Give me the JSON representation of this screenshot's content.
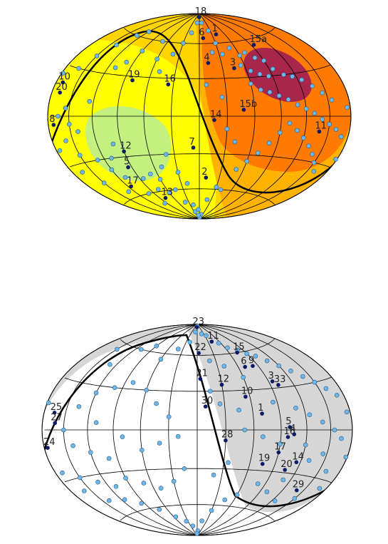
{
  "chart_data": [
    {
      "type": "scatter",
      "projection": "hammer-aitoff",
      "coordinates": "galactic",
      "grid": true,
      "background": "filled dipole contours",
      "contour_colors": [
        "#c3f07f",
        "#ffff00",
        "#ffd500",
        "#ffb300",
        "#ff7a00",
        "#a8254c"
      ],
      "boundary_curve": true,
      "labeled_points": [
        {
          "label": "18",
          "l": 2,
          "b": 86
        },
        {
          "label": "1",
          "l": -40,
          "b": 68
        },
        {
          "label": "15a",
          "l": -95,
          "b": 55
        },
        {
          "label": "6",
          "l": -8,
          "b": 65
        },
        {
          "label": "4",
          "l": -12,
          "b": 43
        },
        {
          "label": "3",
          "l": -45,
          "b": 38
        },
        {
          "label": "10",
          "l": 170,
          "b": 20
        },
        {
          "label": "20",
          "l": 168,
          "b": 14
        },
        {
          "label": "19",
          "l": 80,
          "b": 27
        },
        {
          "label": "16",
          "l": 36,
          "b": 25
        },
        {
          "label": "15b",
          "l": -48,
          "b": 5
        },
        {
          "label": "8",
          "l": 172,
          "b": -5
        },
        {
          "label": "14",
          "l": -16,
          "b": -3
        },
        {
          "label": "11",
          "l": -138,
          "b": -10
        },
        {
          "label": "12",
          "l": 90,
          "b": -26
        },
        {
          "label": "7",
          "l": 7,
          "b": -25
        },
        {
          "label": "5",
          "l": 95,
          "b": -38
        },
        {
          "label": "2",
          "l": -10,
          "b": -50
        },
        {
          "label": "17",
          "l": 115,
          "b": -52
        },
        {
          "label": "13",
          "l": 78,
          "b": -66
        }
      ],
      "unlabeled_points": [
        {
          "l": -25,
          "b": 72
        },
        {
          "l": -30,
          "b": 60
        },
        {
          "l": -20,
          "b": 52
        },
        {
          "l": -35,
          "b": 50
        },
        {
          "l": -50,
          "b": 55
        },
        {
          "l": -60,
          "b": 48
        },
        {
          "l": -70,
          "b": 50
        },
        {
          "l": -80,
          "b": 45
        },
        {
          "l": -90,
          "b": 42
        },
        {
          "l": -55,
          "b": 40
        },
        {
          "l": -65,
          "b": 35
        },
        {
          "l": -75,
          "b": 32
        },
        {
          "l": -85,
          "b": 30
        },
        {
          "l": -95,
          "b": 35
        },
        {
          "l": -105,
          "b": 30
        },
        {
          "l": -115,
          "b": 28
        },
        {
          "l": -125,
          "b": 25
        },
        {
          "l": -135,
          "b": 20
        },
        {
          "l": -145,
          "b": 15
        },
        {
          "l": -155,
          "b": 10
        },
        {
          "l": -60,
          "b": 25
        },
        {
          "l": -70,
          "b": 20
        },
        {
          "l": -80,
          "b": 18
        },
        {
          "l": -90,
          "b": 15
        },
        {
          "l": -100,
          "b": 12
        },
        {
          "l": -110,
          "b": 8
        },
        {
          "l": -120,
          "b": 5
        },
        {
          "l": -130,
          "b": 2
        },
        {
          "l": -140,
          "b": -2
        },
        {
          "l": -150,
          "b": -5
        },
        {
          "l": -160,
          "b": -8
        },
        {
          "l": -170,
          "b": -12
        },
        {
          "l": -100,
          "b": -5
        },
        {
          "l": -110,
          "b": -10
        },
        {
          "l": -120,
          "b": -15
        },
        {
          "l": -90,
          "b": -12
        },
        {
          "l": -80,
          "b": -20
        },
        {
          "l": -70,
          "b": -28
        },
        {
          "l": -60,
          "b": -35
        },
        {
          "l": -50,
          "b": -42
        },
        {
          "l": -130,
          "b": -20
        },
        {
          "l": -140,
          "b": -25
        },
        {
          "l": -150,
          "b": -30
        },
        {
          "l": -160,
          "b": -35
        },
        {
          "l": -40,
          "b": -60
        },
        {
          "l": -20,
          "b": -70
        },
        {
          "l": -30,
          "b": -58
        },
        {
          "l": 5,
          "b": -80
        },
        {
          "l": 20,
          "b": -75
        },
        {
          "l": 40,
          "b": -72
        },
        {
          "l": 60,
          "b": -62
        },
        {
          "l": 75,
          "b": -58
        },
        {
          "l": 100,
          "b": -60
        },
        {
          "l": 130,
          "b": -55
        },
        {
          "l": 150,
          "b": -45
        },
        {
          "l": 165,
          "b": -35
        },
        {
          "l": 175,
          "b": -20
        },
        {
          "l": 160,
          "b": -15
        },
        {
          "l": 150,
          "b": -25
        },
        {
          "l": 140,
          "b": -10
        },
        {
          "l": 130,
          "b": -30
        },
        {
          "l": 120,
          "b": -38
        },
        {
          "l": 110,
          "b": -30
        },
        {
          "l": 100,
          "b": -20
        },
        {
          "l": 70,
          "b": -45
        },
        {
          "l": 60,
          "b": -50
        },
        {
          "l": 50,
          "b": -40
        },
        {
          "l": 40,
          "b": -30
        },
        {
          "l": 30,
          "b": -45
        },
        {
          "l": 20,
          "b": -55
        },
        {
          "l": 45,
          "b": -60
        },
        {
          "l": 85,
          "b": -48
        },
        {
          "l": 95,
          "b": -70
        },
        {
          "l": 110,
          "b": -45
        },
        {
          "l": 160,
          "b": 30
        },
        {
          "l": 150,
          "b": 40
        },
        {
          "l": 140,
          "b": 50
        },
        {
          "l": 130,
          "b": 60
        },
        {
          "l": 120,
          "b": 65
        },
        {
          "l": 110,
          "b": 35
        },
        {
          "l": 100,
          "b": 40
        },
        {
          "l": 90,
          "b": 50
        },
        {
          "l": 70,
          "b": 60
        },
        {
          "l": 60,
          "b": 45
        },
        {
          "l": 50,
          "b": 35
        },
        {
          "l": 40,
          "b": 50
        },
        {
          "l": 30,
          "b": 60
        },
        {
          "l": 20,
          "b": 70
        },
        {
          "l": 10,
          "b": 80
        },
        {
          "l": 155,
          "b": 5
        },
        {
          "l": 165,
          "b": 0
        },
        {
          "l": 150,
          "b": -5
        },
        {
          "l": 125,
          "b": 10
        },
        {
          "l": -10,
          "b": 80
        },
        {
          "l": -15,
          "b": -85
        },
        {
          "l": -5,
          "b": -88
        },
        {
          "l": 10,
          "b": -86
        },
        {
          "l": 25,
          "b": -82
        },
        {
          "l": -8,
          "b": 25
        },
        {
          "l": -25,
          "b": 15
        },
        {
          "l": -30,
          "b": -10
        },
        {
          "l": -40,
          "b": -20
        },
        {
          "l": -175,
          "b": 5
        },
        {
          "l": -178,
          "b": -25
        },
        {
          "l": 178,
          "b": 25
        }
      ]
    },
    {
      "type": "scatter",
      "projection": "hammer-aitoff",
      "coordinates": "galactic",
      "grid": true,
      "background": "grey half-sky shading",
      "shade_color": "#d6d6d6",
      "boundary_curve": true,
      "labeled_points": [
        {
          "label": "23",
          "l": 5,
          "b": 87
        },
        {
          "label": "11",
          "l": -40,
          "b": 72
        },
        {
          "label": "15",
          "l": -75,
          "b": 60
        },
        {
          "label": "22",
          "l": -3,
          "b": 62
        },
        {
          "label": "6",
          "l": -70,
          "b": 48
        },
        {
          "label": "9",
          "l": -82,
          "b": 48
        },
        {
          "label": "21",
          "l": -4,
          "b": 40
        },
        {
          "label": "12",
          "l": -30,
          "b": 35
        },
        {
          "label": "3",
          "l": -95,
          "b": 35
        },
        {
          "label": "33",
          "l": -100,
          "b": 32
        },
        {
          "label": "10",
          "l": -55,
          "b": 25
        },
        {
          "label": "30",
          "l": -9,
          "b": 18
        },
        {
          "label": "1",
          "l": -70,
          "b": 12
        },
        {
          "label": "25",
          "l": 165,
          "b": 10
        },
        {
          "label": "27",
          "l": 162,
          "b": 4
        },
        {
          "label": "5",
          "l": -100,
          "b": 2
        },
        {
          "label": "16",
          "l": -98,
          "b": -5
        },
        {
          "label": "4",
          "l": -105,
          "b": -3
        },
        {
          "label": "28",
          "l": -30,
          "b": -8
        },
        {
          "label": "17",
          "l": -90,
          "b": -16
        },
        {
          "label": "24",
          "l": 175,
          "b": -10
        },
        {
          "label": "19",
          "l": -75,
          "b": -25
        },
        {
          "label": "14",
          "l": -115,
          "b": -22
        },
        {
          "label": "20",
          "l": -105,
          "b": -28
        },
        {
          "label": "29",
          "l": -140,
          "b": -40
        }
      ],
      "unlabeled_points": [
        {
          "l": -20,
          "b": 80
        },
        {
          "l": -35,
          "b": 78
        },
        {
          "l": -55,
          "b": 70
        },
        {
          "l": -65,
          "b": 65
        },
        {
          "l": -80,
          "b": 62
        },
        {
          "l": -90,
          "b": 58
        },
        {
          "l": -100,
          "b": 55
        },
        {
          "l": -110,
          "b": 50
        },
        {
          "l": -120,
          "b": 45
        },
        {
          "l": -130,
          "b": 40
        },
        {
          "l": -140,
          "b": 35
        },
        {
          "l": -150,
          "b": 30
        },
        {
          "l": -160,
          "b": 25
        },
        {
          "l": -170,
          "b": 20
        },
        {
          "l": -60,
          "b": 40
        },
        {
          "l": -40,
          "b": 50
        },
        {
          "l": -20,
          "b": 55
        },
        {
          "l": -15,
          "b": 30
        },
        {
          "l": -25,
          "b": 20
        },
        {
          "l": -45,
          "b": 15
        },
        {
          "l": -85,
          "b": 20
        },
        {
          "l": -110,
          "b": 15
        },
        {
          "l": -125,
          "b": 10
        },
        {
          "l": -140,
          "b": 5
        },
        {
          "l": -155,
          "b": 0
        },
        {
          "l": -165,
          "b": -5
        },
        {
          "l": -120,
          "b": -10
        },
        {
          "l": -130,
          "b": -20
        },
        {
          "l": -145,
          "b": -15
        },
        {
          "l": -160,
          "b": -25
        },
        {
          "l": -170,
          "b": -35
        },
        {
          "l": -150,
          "b": -45
        },
        {
          "l": -125,
          "b": -50
        },
        {
          "l": -100,
          "b": -45
        },
        {
          "l": -80,
          "b": -40
        },
        {
          "l": -60,
          "b": -50
        },
        {
          "l": -45,
          "b": -55
        },
        {
          "l": -30,
          "b": -65
        },
        {
          "l": -15,
          "b": -75
        },
        {
          "l": -5,
          "b": -85
        },
        {
          "l": 5,
          "b": -88
        },
        {
          "l": 20,
          "b": -80
        },
        {
          "l": 35,
          "b": -75
        },
        {
          "l": 55,
          "b": -70
        },
        {
          "l": 75,
          "b": -62
        },
        {
          "l": 95,
          "b": -55
        },
        {
          "l": 115,
          "b": -50
        },
        {
          "l": 140,
          "b": -48
        },
        {
          "l": 160,
          "b": -38
        },
        {
          "l": 170,
          "b": -25
        },
        {
          "l": 150,
          "b": -30
        },
        {
          "l": 130,
          "b": -35
        },
        {
          "l": 110,
          "b": -40
        },
        {
          "l": 90,
          "b": -35
        },
        {
          "l": 70,
          "b": -40
        },
        {
          "l": 50,
          "b": -45
        },
        {
          "l": 30,
          "b": -40
        },
        {
          "l": 15,
          "b": -30
        },
        {
          "l": 100,
          "b": -20
        },
        {
          "l": 120,
          "b": -15
        },
        {
          "l": 140,
          "b": -10
        },
        {
          "l": 150,
          "b": 0
        },
        {
          "l": 135,
          "b": 15
        },
        {
          "l": 120,
          "b": 25
        },
        {
          "l": 100,
          "b": 30
        },
        {
          "l": 80,
          "b": 35
        },
        {
          "l": 60,
          "b": 30
        },
        {
          "l": 45,
          "b": 20
        },
        {
          "l": 30,
          "b": 10
        },
        {
          "l": 20,
          "b": -5
        },
        {
          "l": 40,
          "b": -10
        },
        {
          "l": 60,
          "b": -15
        },
        {
          "l": 80,
          "b": -5
        },
        {
          "l": 110,
          "b": 5
        },
        {
          "l": 130,
          "b": 45
        },
        {
          "l": 150,
          "b": 55
        },
        {
          "l": 110,
          "b": 60
        },
        {
          "l": 90,
          "b": 65
        },
        {
          "l": 60,
          "b": 55
        },
        {
          "l": 40,
          "b": 65
        },
        {
          "l": 20,
          "b": 72
        },
        {
          "l": 10,
          "b": 82
        },
        {
          "l": -2,
          "b": 88
        },
        {
          "l": -90,
          "b": -10
        },
        {
          "l": -70,
          "b": -5
        },
        {
          "l": -50,
          "b": 0
        },
        {
          "l": -35,
          "b": -25
        },
        {
          "l": -20,
          "b": -35
        },
        {
          "l": -110,
          "b": -35
        },
        {
          "l": -175,
          "b": 10
        },
        {
          "l": 178,
          "b": 15
        },
        {
          "l": -178,
          "b": -15
        }
      ]
    }
  ]
}
